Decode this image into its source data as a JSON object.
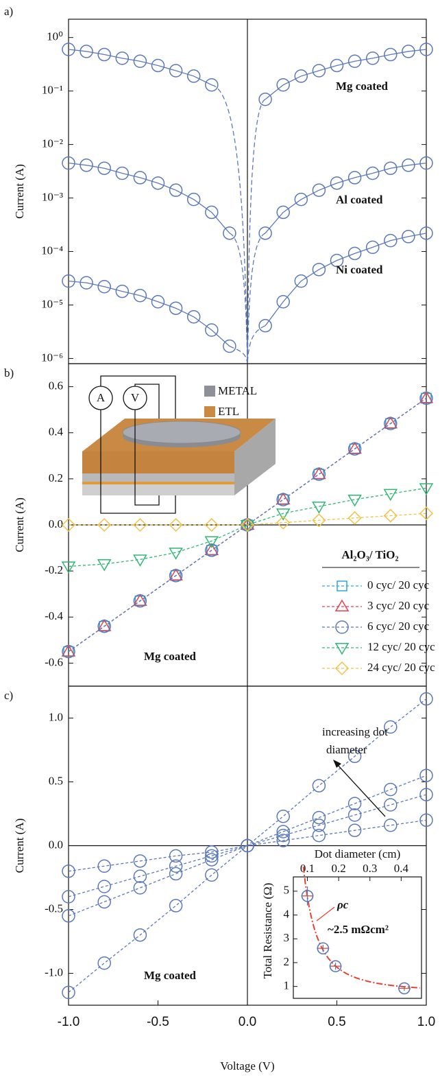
{
  "chart_data": [
    {
      "type": "line",
      "label": "a)",
      "ylabel": "Current (A)",
      "log_y": true,
      "line_style": "solid",
      "xlim": [
        -1,
        1
      ],
      "ylim": [
        8e-07,
        2.2
      ],
      "yticks": [
        {
          "value": 1,
          "label": "10⁰"
        },
        {
          "value": 0.1,
          "label": "10⁻¹"
        },
        {
          "value": 0.01,
          "label": "10⁻²"
        },
        {
          "value": 0.001,
          "label": "10⁻³"
        },
        {
          "value": 0.0001,
          "label": "10⁻⁴"
        },
        {
          "value": 1e-05,
          "label": "10⁻⁵"
        },
        {
          "value": 1e-06,
          "label": "10⁻⁶"
        }
      ],
      "x": [
        -1,
        -0.9,
        -0.8,
        -0.7,
        -0.6,
        -0.5,
        -0.4,
        -0.3,
        -0.2,
        -0.1,
        0,
        0.1,
        0.2,
        0.3,
        0.4,
        0.5,
        0.6,
        0.7,
        0.8,
        0.9,
        1
      ],
      "series": [
        {
          "name": "Mg coated",
          "color": "#5a78bb",
          "marker": "circle",
          "values": [
            0.6,
            0.55,
            0.48,
            0.41,
            0.36,
            0.3,
            0.24,
            0.19,
            0.13,
            null,
            null,
            0.07,
            0.13,
            0.19,
            0.24,
            0.3,
            0.36,
            0.41,
            0.48,
            0.55,
            0.6
          ]
        },
        {
          "name": "Al coated",
          "color": "#5a78bb",
          "marker": "circle",
          "values": [
            0.0045,
            0.0041,
            0.0036,
            0.0029,
            0.0024,
            0.0019,
            0.0014,
            0.00094,
            0.00054,
            0.00022,
            null,
            0.00022,
            0.00054,
            0.00094,
            0.0014,
            0.0019,
            0.0024,
            0.0029,
            0.0036,
            0.0041,
            0.0045
          ]
        },
        {
          "name": "Ni coated",
          "color": "#5a78bb",
          "marker": "circle",
          "values": [
            2.8e-05,
            2.6e-05,
            2.2e-05,
            1.8e-05,
            1.5e-05,
            1.15e-05,
            8.7e-06,
            6e-06,
            3.4e-06,
            1.7e-06,
            null,
            4.1e-06,
            1.15e-05,
            2.8e-05,
            4.6e-05,
            6.8e-05,
            9.2e-05,
            0.00012,
            0.00016,
            0.00019,
            0.00022
          ]
        }
      ]
    },
    {
      "type": "line",
      "label": "b)",
      "ylabel": "Current (A)",
      "line_style": "dashed",
      "legend": "lower right",
      "legend_title": "Al₂O₃/ TiO₂",
      "annotation": "Mg coated",
      "inset_labels": {
        "ammeter": "A",
        "voltmeter": "V",
        "metal": "METAL",
        "etl": "ETL"
      },
      "xlim": [
        -1,
        1
      ],
      "ylim": [
        -0.7,
        0.7
      ],
      "yticks": [
        -0.6,
        -0.4,
        -0.2,
        {
          "value": 0,
          "label": "0.0"
        },
        0.2,
        0.4,
        0.6
      ],
      "x": [
        -1,
        -0.8,
        -0.6,
        -0.4,
        -0.2,
        0,
        0.2,
        0.4,
        0.6,
        0.8,
        1
      ],
      "series": [
        {
          "name": "0 cyc/ 20 cyc",
          "color": "#2aa7df",
          "marker": "square",
          "values": [
            -0.55,
            -0.44,
            -0.33,
            -0.22,
            -0.11,
            0,
            0.11,
            0.22,
            0.33,
            0.44,
            0.55
          ]
        },
        {
          "name": "3 cyc/ 20 cyc",
          "color": "#e8414a",
          "marker": "triangle",
          "values": [
            -0.55,
            -0.44,
            -0.33,
            -0.22,
            -0.11,
            0,
            0.11,
            0.22,
            0.33,
            0.44,
            0.55
          ]
        },
        {
          "name": "6 cyc/ 20 cyc",
          "color": "#5a78bb",
          "marker": "circle",
          "values": [
            -0.55,
            -0.44,
            -0.33,
            -0.22,
            -0.11,
            0,
            0.11,
            0.22,
            0.33,
            0.44,
            0.55
          ]
        },
        {
          "name": "12 cyc/ 20 cyc",
          "color": "#2eb872",
          "marker": "triangle-down",
          "values": [
            -0.18,
            -0.17,
            -0.15,
            -0.12,
            -0.07,
            0,
            0.05,
            0.08,
            0.11,
            0.135,
            0.16
          ]
        },
        {
          "name": "24 cyc/ 20 cyc",
          "color": "#f2c248",
          "marker": "diamond",
          "values": [
            0,
            0,
            0,
            0,
            0,
            0,
            0.01,
            0.02,
            0.03,
            0.04,
            0.05
          ]
        }
      ]
    },
    {
      "type": "line",
      "label": "c)",
      "ylabel": "Current (A)",
      "xlabel": "Voltage (V)",
      "line_style": "dashed",
      "annotation": "Mg coated",
      "arrow_text": [
        "increasing dot",
        "diameter"
      ],
      "xlim": [
        -1,
        1
      ],
      "ylim": [
        -1.25,
        1.25
      ],
      "xticks": [
        {
          "value": -1,
          "label": "-1.0"
        },
        -0.5,
        {
          "value": 0,
          "label": "0.0"
        },
        0.5,
        {
          "value": 1,
          "label": "1.0"
        }
      ],
      "yticks": [
        {
          "value": -1,
          "label": "-1.0"
        },
        -0.5,
        {
          "value": 0,
          "label": "0.0"
        },
        0.5,
        {
          "value": 1,
          "label": "1.0"
        }
      ],
      "x": [
        -1,
        -0.8,
        -0.6,
        -0.4,
        -0.2,
        0,
        0.2,
        0.4,
        0.6,
        0.8,
        1
      ],
      "series": [
        {
          "color": "#5a78bb",
          "marker": "circle",
          "values": [
            -1.15,
            -0.92,
            -0.7,
            -0.47,
            -0.23,
            0,
            0.23,
            0.47,
            0.7,
            0.93,
            1.15
          ]
        },
        {
          "color": "#5a78bb",
          "marker": "circle",
          "values": [
            -0.55,
            -0.44,
            -0.33,
            -0.22,
            -0.11,
            0,
            0.11,
            0.22,
            0.33,
            0.44,
            0.55
          ]
        },
        {
          "color": "#5a78bb",
          "marker": "circle",
          "values": [
            -0.4,
            -0.32,
            -0.24,
            -0.16,
            -0.08,
            0,
            0.08,
            0.16,
            0.24,
            0.32,
            0.4
          ]
        },
        {
          "color": "#5a78bb",
          "marker": "circle",
          "values": [
            -0.2,
            -0.16,
            -0.12,
            -0.08,
            -0.05,
            0,
            0.04,
            0.08,
            0.12,
            0.16,
            0.2
          ]
        }
      ]
    },
    {
      "type": "scatter",
      "xlabel": "Dot diameter (cm)",
      "ylabel": "Total Resistance (Ω)",
      "annotations": [
        "ρc",
        "~2.5 mΩcm²"
      ],
      "fit_color": "#e8412f",
      "xlim": [
        0.055,
        0.465
      ],
      "ylim": [
        0.5,
        5.6
      ],
      "xticks": [
        0.1,
        0.2,
        0.3,
        0.4
      ],
      "yticks": [
        1,
        2,
        3,
        4,
        5
      ],
      "x": [
        0.1,
        0.15,
        0.19,
        0.41
      ],
      "values": [
        4.8,
        2.6,
        1.85,
        0.92
      ],
      "errors": [
        0.4,
        0.15,
        0.15,
        0.1
      ],
      "color": "#5a78bb"
    }
  ]
}
